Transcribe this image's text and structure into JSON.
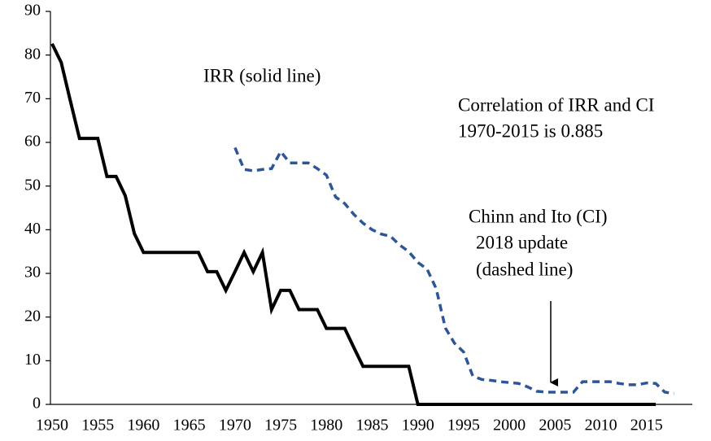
{
  "chart_data": {
    "type": "line",
    "x": [
      1950,
      1951,
      1952,
      1953,
      1954,
      1955,
      1956,
      1957,
      1958,
      1959,
      1960,
      1961,
      1962,
      1963,
      1964,
      1965,
      1966,
      1967,
      1968,
      1969,
      1970,
      1971,
      1972,
      1973,
      1974,
      1975,
      1976,
      1977,
      1978,
      1979,
      1980,
      1981,
      1982,
      1983,
      1984,
      1985,
      1986,
      1987,
      1988,
      1989,
      1990,
      1991,
      1992,
      1993,
      1994,
      1995,
      1996,
      1997,
      1998,
      1999,
      2000,
      2001,
      2002,
      2003,
      2004,
      2005,
      2006,
      2007,
      2008,
      2009,
      2010,
      2011,
      2012,
      2013,
      2014,
      2015,
      2016,
      2017,
      2018
    ],
    "series": [
      {
        "color": "#000000",
        "line_style": "solid",
        "values": [
          82.6,
          78.3,
          69.5,
          60.9,
          60.9,
          60.9,
          52.2,
          52.2,
          47.8,
          39.1,
          34.8,
          34.8,
          34.8,
          34.8,
          34.8,
          34.8,
          34.8,
          30.4,
          30.4,
          26.1,
          30.4,
          34.8,
          30.4,
          34.8,
          21.7,
          26.1,
          26.1,
          21.7,
          21.7,
          21.7,
          17.4,
          17.4,
          17.4,
          13,
          8.7,
          8.7,
          8.7,
          8.7,
          8.7,
          8.7,
          0,
          0,
          0,
          0,
          0,
          0,
          0,
          0,
          0,
          0,
          0,
          0,
          0,
          0,
          0,
          0,
          0,
          0,
          0,
          0,
          0,
          0,
          0,
          0,
          0,
          0,
          0,
          null,
          null
        ]
      },
      {
        "color": "#2f5597",
        "line_style": "dashed",
        "values": [
          null,
          null,
          null,
          null,
          null,
          null,
          null,
          null,
          null,
          null,
          null,
          null,
          null,
          null,
          null,
          null,
          null,
          null,
          null,
          null,
          58.8,
          53.8,
          53.5,
          53.8,
          54,
          57.9,
          55.3,
          55.3,
          55.3,
          54,
          52.5,
          47.5,
          46,
          43.5,
          41.5,
          40,
          39,
          38.5,
          36.5,
          35,
          32.5,
          31,
          26.5,
          17.5,
          14,
          12,
          6.5,
          5.7,
          5.5,
          5.2,
          5,
          4.8,
          4,
          3,
          2.8,
          2.8,
          2.8,
          2.8,
          5.2,
          5.2,
          5.2,
          5.2,
          4.8,
          4.5,
          4.5,
          4.9,
          4.8,
          2.8,
          2.5
        ]
      }
    ],
    "xlim": [
      1950,
      2020
    ],
    "xticks": [
      1950,
      1955,
      1960,
      1965,
      1970,
      1975,
      1980,
      1985,
      1990,
      1995,
      2000,
      2005,
      2010,
      2015
    ],
    "ylim": [
      0,
      90
    ],
    "yticks": [
      0,
      10,
      20,
      30,
      40,
      50,
      60,
      70,
      80,
      90
    ],
    "grid": false,
    "annotations": [
      "IRR (solid line)",
      "Correlation of IRR and CI",
      "1970-2015 is 0.885",
      "Chinn and Ito (CI)",
      "2018 update",
      "(dashed line)"
    ]
  }
}
